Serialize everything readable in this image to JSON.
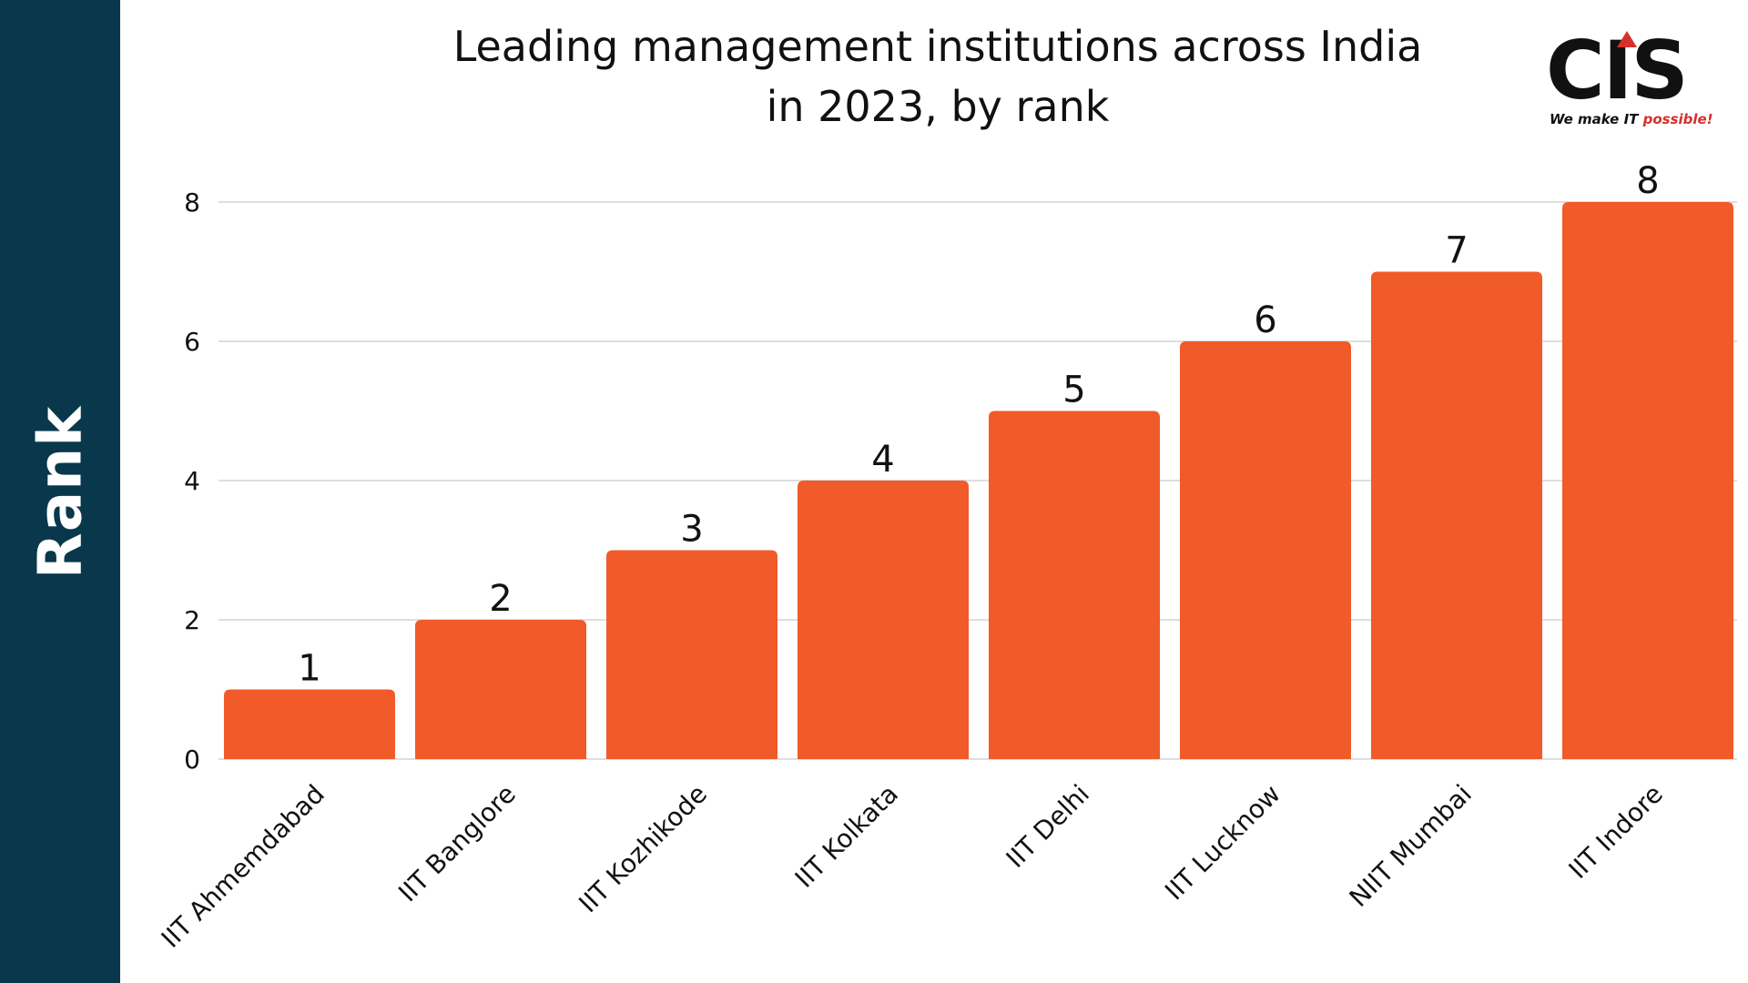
{
  "side_label": "Rank",
  "logo": {
    "mark": "CIS",
    "tagline_prefix": "We make IT ",
    "tagline_accent": "possible!"
  },
  "colors": {
    "side_band": "#09374b",
    "bar": "#f15a29",
    "grid": "#d4d4d4",
    "text": "#111111",
    "logo_accent": "#d6302b"
  },
  "chart_data": {
    "type": "bar",
    "title": [
      "Leading management institutions across India",
      "in 2023, by rank"
    ],
    "xlabel": "",
    "ylabel": "Rank",
    "categories": [
      "IIT Ahmemdabad",
      "IIT Banglore",
      "IIT Kozhikode",
      "IIT Kolkata",
      "IIT Delhi",
      "IIT Lucknow",
      "NIIT Mumbai",
      "IIT Indore"
    ],
    "values": [
      1,
      2,
      3,
      4,
      5,
      6,
      7,
      8
    ],
    "data_labels": [
      "1",
      "2",
      "3",
      "4",
      "5",
      "6",
      "7",
      "8"
    ],
    "ylim": [
      0,
      8
    ],
    "yticks": [
      0,
      2,
      4,
      6,
      8
    ],
    "grid": true,
    "legend": "none"
  }
}
